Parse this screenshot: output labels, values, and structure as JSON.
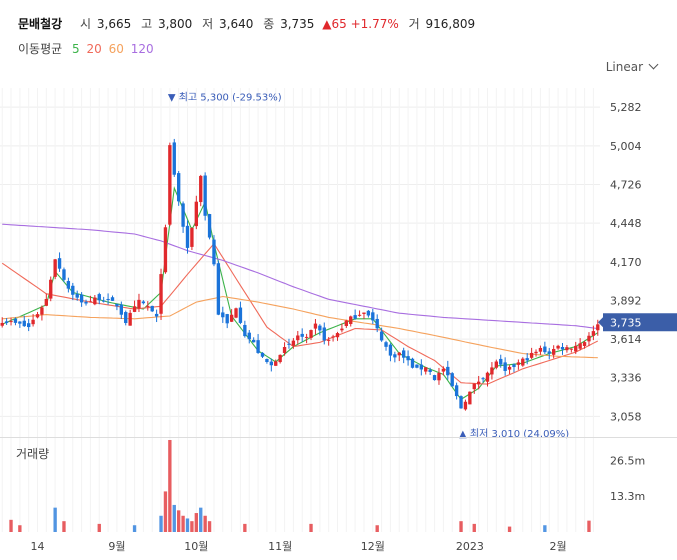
{
  "header": {
    "stock_name": "문배철강",
    "open_label": "시",
    "open": "3,665",
    "high_label": "고",
    "high": "3,800",
    "low_label": "저",
    "low": "3,640",
    "close_label": "종",
    "close": "3,735",
    "change_arrow": "▲",
    "change": "65",
    "change_pct": "+1.77%",
    "volume_label": "거",
    "volume": "916,809"
  },
  "moving_average": {
    "label": "이동평균",
    "periods": [
      {
        "value": "5",
        "color": "#3cb34a"
      },
      {
        "value": "20",
        "color": "#f06a5a"
      },
      {
        "value": "60",
        "color": "#f5a25d"
      },
      {
        "value": "120",
        "color": "#a86ee0"
      }
    ]
  },
  "scale_selector": "Linear",
  "volume_panel_label": "거래량",
  "colors": {
    "up": "#e0282c",
    "down": "#1a73d9",
    "grid": "#eeeeee"
  },
  "chart_data": {
    "type": "candlestick",
    "y_ticks": [
      "5,282",
      "5,004",
      "4,726",
      "4,448",
      "4,170",
      "3,892",
      "3,614",
      "3,336",
      "3,058"
    ],
    "y_tick_values": [
      5282,
      5004,
      4726,
      4448,
      4170,
      3892,
      3614,
      3336,
      3058
    ],
    "ylim": [
      2960,
      5420
    ],
    "x_ticks": [
      "14",
      "9월",
      "10월",
      "11월",
      "12월",
      "2023",
      "2월"
    ],
    "x_tick_positions": [
      8,
      26,
      44,
      63,
      84,
      106,
      126
    ],
    "last_price_label": "3,735",
    "last_price": 3735,
    "max_annotation": {
      "text": "▼ 최고 5,300 (-29.53%)",
      "index": 38,
      "value": 5300
    },
    "min_annotation": {
      "text": "▲ 최저 3,010 (24.09%)",
      "index": 104,
      "value": 3010
    },
    "volume_ticks": [
      "26.5m",
      "13.3m"
    ],
    "volume_tick_values": [
      26.5,
      13.3
    ],
    "volume_max": 34,
    "candle_count": 136,
    "close_anchors": [
      [
        0,
        3750
      ],
      [
        6,
        3700
      ],
      [
        10,
        3900
      ],
      [
        12,
        4200
      ],
      [
        15,
        3980
      ],
      [
        18,
        3870
      ],
      [
        22,
        3910
      ],
      [
        26,
        3860
      ],
      [
        28,
        3740
      ],
      [
        31,
        3880
      ],
      [
        33,
        3850
      ],
      [
        35,
        3760
      ],
      [
        36,
        4100
      ],
      [
        37,
        4400
      ],
      [
        38,
        5000
      ],
      [
        39,
        4800
      ],
      [
        40,
        4600
      ],
      [
        42,
        4250
      ],
      [
        44,
        4600
      ],
      [
        45,
        4800
      ],
      [
        46,
        4500
      ],
      [
        47,
        4350
      ],
      [
        48,
        4150
      ],
      [
        49,
        3800
      ],
      [
        51,
        3720
      ],
      [
        53,
        3850
      ],
      [
        55,
        3650
      ],
      [
        57,
        3580
      ],
      [
        59,
        3470
      ],
      [
        61,
        3420
      ],
      [
        63,
        3520
      ],
      [
        65,
        3560
      ],
      [
        67,
        3640
      ],
      [
        69,
        3610
      ],
      [
        71,
        3710
      ],
      [
        73,
        3620
      ],
      [
        74,
        3600
      ],
      [
        76,
        3660
      ],
      [
        78,
        3740
      ],
      [
        80,
        3780
      ],
      [
        82,
        3820
      ],
      [
        84,
        3740
      ],
      [
        86,
        3620
      ],
      [
        88,
        3490
      ],
      [
        90,
        3510
      ],
      [
        92,
        3450
      ],
      [
        94,
        3390
      ],
      [
        96,
        3420
      ],
      [
        98,
        3330
      ],
      [
        100,
        3400
      ],
      [
        102,
        3270
      ],
      [
        104,
        3120
      ],
      [
        105,
        3180
      ],
      [
        107,
        3280
      ],
      [
        109,
        3350
      ],
      [
        111,
        3400
      ],
      [
        112,
        3460
      ],
      [
        114,
        3370
      ],
      [
        116,
        3420
      ],
      [
        118,
        3460
      ],
      [
        120,
        3500
      ],
      [
        122,
        3540
      ],
      [
        124,
        3520
      ],
      [
        126,
        3560
      ],
      [
        128,
        3550
      ],
      [
        130,
        3570
      ],
      [
        132,
        3600
      ],
      [
        133,
        3650
      ],
      [
        134,
        3660
      ],
      [
        135,
        3735
      ]
    ],
    "ma5_anchors": [
      [
        0,
        3720
      ],
      [
        10,
        3860
      ],
      [
        12,
        4100
      ],
      [
        16,
        3950
      ],
      [
        24,
        3880
      ],
      [
        32,
        3830
      ],
      [
        36,
        3950
      ],
      [
        39,
        4700
      ],
      [
        43,
        4400
      ],
      [
        46,
        4600
      ],
      [
        48,
        4300
      ],
      [
        52,
        3780
      ],
      [
        58,
        3530
      ],
      [
        62,
        3450
      ],
      [
        66,
        3560
      ],
      [
        72,
        3660
      ],
      [
        80,
        3760
      ],
      [
        84,
        3760
      ],
      [
        90,
        3510
      ],
      [
        96,
        3410
      ],
      [
        100,
        3360
      ],
      [
        104,
        3180
      ],
      [
        108,
        3260
      ],
      [
        112,
        3420
      ],
      [
        118,
        3440
      ],
      [
        124,
        3510
      ],
      [
        130,
        3560
      ],
      [
        135,
        3660
      ]
    ],
    "ma20_anchors": [
      [
        0,
        4160
      ],
      [
        10,
        3940
      ],
      [
        20,
        3880
      ],
      [
        30,
        3830
      ],
      [
        36,
        3850
      ],
      [
        42,
        4080
      ],
      [
        48,
        4300
      ],
      [
        54,
        4000
      ],
      [
        60,
        3700
      ],
      [
        66,
        3560
      ],
      [
        72,
        3590
      ],
      [
        80,
        3690
      ],
      [
        86,
        3680
      ],
      [
        92,
        3560
      ],
      [
        98,
        3460
      ],
      [
        104,
        3300
      ],
      [
        110,
        3290
      ],
      [
        118,
        3400
      ],
      [
        126,
        3480
      ],
      [
        130,
        3520
      ],
      [
        135,
        3600
      ]
    ],
    "ma60_anchors": [
      [
        0,
        3760
      ],
      [
        10,
        3790
      ],
      [
        20,
        3770
      ],
      [
        30,
        3760
      ],
      [
        38,
        3780
      ],
      [
        44,
        3880
      ],
      [
        50,
        3920
      ],
      [
        58,
        3880
      ],
      [
        66,
        3830
      ],
      [
        74,
        3770
      ],
      [
        82,
        3730
      ],
      [
        90,
        3690
      ],
      [
        98,
        3640
      ],
      [
        104,
        3600
      ],
      [
        110,
        3560
      ],
      [
        118,
        3510
      ],
      [
        126,
        3490
      ],
      [
        135,
        3480
      ]
    ],
    "ma120_anchors": [
      [
        0,
        4440
      ],
      [
        10,
        4420
      ],
      [
        20,
        4400
      ],
      [
        30,
        4370
      ],
      [
        36,
        4320
      ],
      [
        42,
        4250
      ],
      [
        50,
        4180
      ],
      [
        58,
        4090
      ],
      [
        66,
        3990
      ],
      [
        74,
        3900
      ],
      [
        82,
        3850
      ],
      [
        90,
        3800
      ],
      [
        100,
        3770
      ],
      [
        110,
        3750
      ],
      [
        120,
        3730
      ],
      [
        130,
        3710
      ],
      [
        135,
        3690
      ]
    ],
    "volume_spikes": [
      [
        2,
        4.5
      ],
      [
        4,
        2.5
      ],
      [
        12,
        9
      ],
      [
        14,
        4
      ],
      [
        22,
        3
      ],
      [
        30,
        2.5
      ],
      [
        36,
        6
      ],
      [
        37,
        15
      ],
      [
        38,
        34
      ],
      [
        39,
        10
      ],
      [
        40,
        8
      ],
      [
        41,
        6
      ],
      [
        42,
        5
      ],
      [
        43,
        4
      ],
      [
        44,
        7
      ],
      [
        45,
        9
      ],
      [
        46,
        6
      ],
      [
        47,
        4
      ],
      [
        55,
        3
      ],
      [
        70,
        3
      ],
      [
        85,
        2.5
      ],
      [
        104,
        4
      ],
      [
        107,
        3
      ],
      [
        115,
        2
      ],
      [
        123,
        2.5
      ],
      [
        133,
        4.2
      ]
    ]
  }
}
